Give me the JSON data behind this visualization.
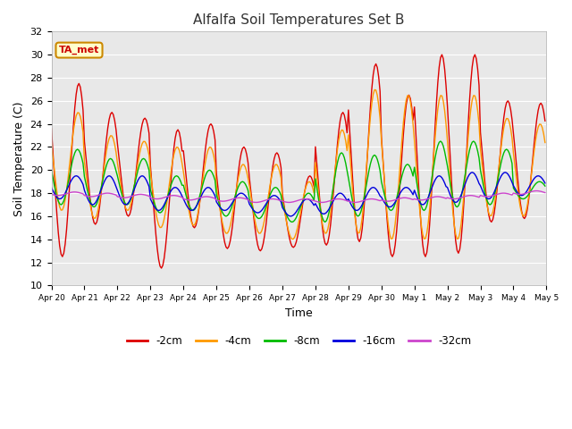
{
  "title": "Alfalfa Soil Temperatures Set B",
  "xlabel": "Time",
  "ylabel": "Soil Temperature (C)",
  "ylim": [
    10,
    32
  ],
  "yticks": [
    10,
    12,
    14,
    16,
    18,
    20,
    22,
    24,
    26,
    28,
    30,
    32
  ],
  "fig_bg": "#ffffff",
  "plot_bg": "#e8e8e8",
  "annotation_text": "TA_met",
  "annotation_bg": "#ffffcc",
  "annotation_border": "#cc8800",
  "legend_entries": [
    "-2cm",
    "-4cm",
    "-8cm",
    "-16cm",
    "-32cm"
  ],
  "line_colors": [
    "#dd0000",
    "#ff9900",
    "#00bb00",
    "#0000dd",
    "#cc44cc"
  ],
  "x_tick_labels": [
    "Apr 20",
    "Apr 21",
    "Apr 22",
    "Apr 23",
    "Apr 24",
    "Apr 25",
    "Apr 26",
    "Apr 27",
    "Apr 28",
    "Apr 29",
    "Apr 30",
    "May 1",
    "May 2",
    "May 3",
    "May 4",
    "May 5"
  ],
  "n_days": 15,
  "pts_per_day": 24,
  "day_peaks_2cm": [
    27.5,
    25.0,
    24.5,
    23.5,
    24.0,
    22.0,
    21.5,
    19.5,
    25.0,
    29.2,
    26.5,
    30.0,
    30.0,
    26.0,
    25.8
  ],
  "day_mins_2cm": [
    12.5,
    15.3,
    16.0,
    11.5,
    15.0,
    13.2,
    13.0,
    13.3,
    13.5,
    13.8,
    12.5,
    12.5,
    12.8,
    15.5,
    15.8
  ],
  "day_peaks_4cm": [
    25.0,
    23.0,
    22.5,
    22.0,
    22.0,
    20.5,
    20.5,
    19.0,
    23.5,
    27.0,
    26.5,
    26.5,
    26.5,
    24.5,
    24.0
  ],
  "day_mins_4cm": [
    16.5,
    15.8,
    16.5,
    15.0,
    15.2,
    14.5,
    14.5,
    14.0,
    14.5,
    14.5,
    14.0,
    14.0,
    14.0,
    16.0,
    16.0
  ],
  "day_peaks_8cm": [
    21.8,
    21.0,
    21.0,
    19.5,
    20.0,
    19.0,
    18.5,
    18.0,
    21.5,
    21.3,
    20.5,
    22.5,
    22.5,
    21.8,
    19.0
  ],
  "day_mins_8cm": [
    17.0,
    16.8,
    17.0,
    16.3,
    16.5,
    16.0,
    15.8,
    15.5,
    15.5,
    16.0,
    16.5,
    16.5,
    16.8,
    17.0,
    17.5
  ],
  "day_peaks_16cm": [
    19.5,
    19.5,
    19.5,
    18.5,
    18.5,
    18.0,
    17.8,
    17.5,
    18.0,
    18.5,
    18.5,
    19.5,
    19.8,
    19.8,
    19.5
  ],
  "day_mins_16cm": [
    17.5,
    17.0,
    17.0,
    16.5,
    16.5,
    16.5,
    16.3,
    16.0,
    16.2,
    16.5,
    16.8,
    17.0,
    17.2,
    17.5,
    17.8
  ],
  "day_peaks_32cm": [
    18.1,
    18.0,
    17.9,
    17.8,
    17.7,
    17.6,
    17.5,
    17.5,
    17.5,
    17.5,
    17.6,
    17.7,
    17.8,
    18.0,
    18.2
  ],
  "day_mins_32cm": [
    17.8,
    17.7,
    17.6,
    17.5,
    17.4,
    17.3,
    17.2,
    17.2,
    17.2,
    17.2,
    17.3,
    17.4,
    17.5,
    17.7,
    17.9
  ]
}
